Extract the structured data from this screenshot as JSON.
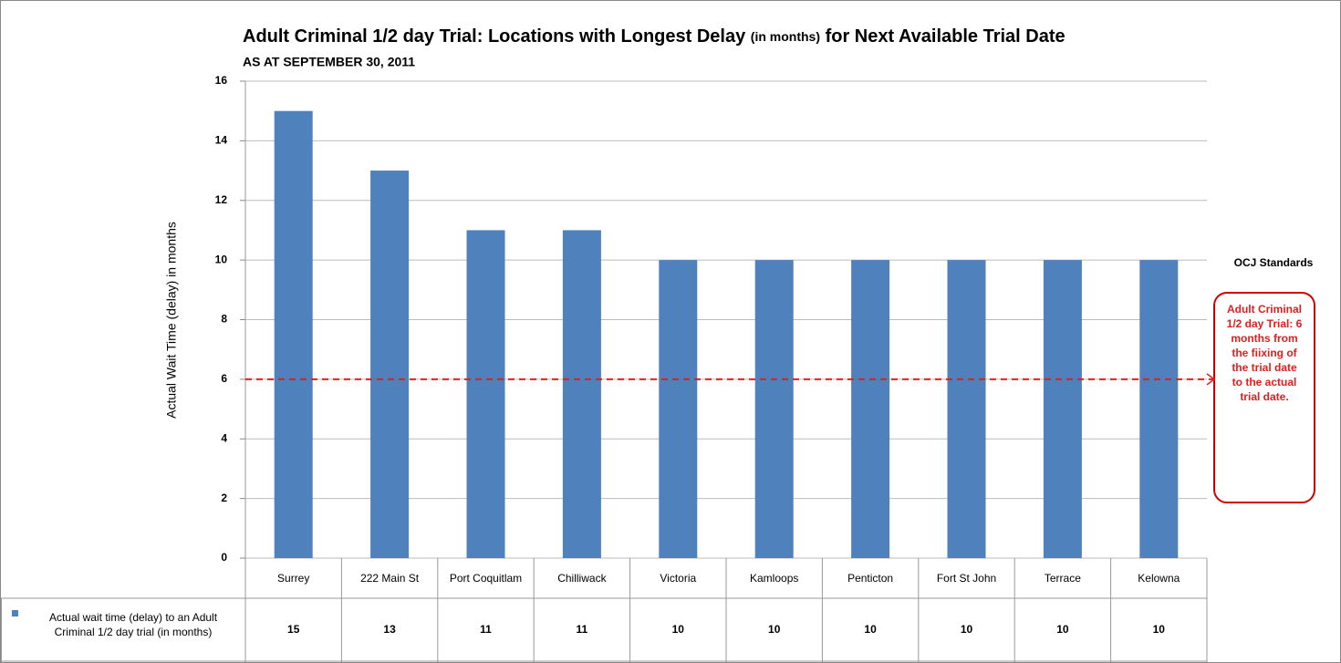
{
  "chart_data": {
    "type": "bar",
    "title": "Adult Criminal 1/2 day Trial: Locations with Longest Delay",
    "title_note": "(in months)",
    "title_end": "for Next Available Trial Date",
    "subtitle": "AS AT SEPTEMBER 30, 2011",
    "y_label": "Actual Wait Time (delay) in months",
    "categories": [
      "Surrey",
      "222 Main St",
      "Port Coquitlam",
      "Chilliwack",
      "Victoria",
      "Kamloops",
      "Penticton",
      "Fort St John",
      "Terrace",
      "Kelowna"
    ],
    "series": [
      {
        "name": "Actual wait time (delay) to an Adult Criminal 1/2 day trial (in months)",
        "color": "#4f81bd",
        "values": [
          15,
          13,
          11,
          11,
          10,
          10,
          10,
          10,
          10,
          10
        ]
      }
    ],
    "ylim": [
      0,
      16
    ],
    "yticks": [
      0,
      2,
      4,
      6,
      8,
      10,
      12,
      14,
      16
    ],
    "grid": true,
    "reference_line": {
      "value": 6,
      "color": "#e02020"
    },
    "annotation": {
      "header": "OCJ Standards",
      "text": "Adult Criminal 1/2 day Trial: 6 months from the fiixing of the trial date to the actual trial date."
    }
  }
}
